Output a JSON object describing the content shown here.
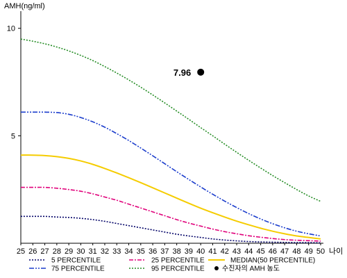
{
  "chart_data": {
    "type": "line",
    "ylabel": "AMH(ng/ml)",
    "xlabel": "나이",
    "x": [
      25,
      26,
      27,
      28,
      29,
      30,
      31,
      32,
      33,
      34,
      35,
      36,
      37,
      38,
      39,
      40,
      41,
      42,
      43,
      44,
      45,
      46,
      47,
      48,
      49,
      50
    ],
    "xlim": [
      25,
      50
    ],
    "ylim": [
      0,
      10.8
    ],
    "yticks": [
      5,
      10
    ],
    "series": [
      {
        "name": "5 PERCENTILE",
        "color": "#000066",
        "dash": "2,2",
        "values": [
          1.25,
          1.25,
          1.25,
          1.22,
          1.2,
          1.16,
          1.1,
          1.02,
          0.92,
          0.82,
          0.72,
          0.62,
          0.52,
          0.42,
          0.34,
          0.27,
          0.2,
          0.15,
          0.11,
          0.08,
          0.06,
          0.05,
          0.04,
          0.03,
          0.03,
          0.02
        ]
      },
      {
        "name": "25 PERCENTILE",
        "color": "#e0007a",
        "dash": "6,2,2,2",
        "values": [
          2.6,
          2.6,
          2.6,
          2.56,
          2.5,
          2.42,
          2.3,
          2.15,
          2.0,
          1.82,
          1.64,
          1.46,
          1.28,
          1.1,
          0.94,
          0.8,
          0.66,
          0.54,
          0.44,
          0.35,
          0.28,
          0.22,
          0.17,
          0.14,
          0.12,
          0.1
        ]
      },
      {
        "name": "MEDIAN(50 PERCENTILE)",
        "color": "#f5cc00",
        "dash": "",
        "values": [
          4.1,
          4.1,
          4.08,
          4.03,
          3.95,
          3.83,
          3.67,
          3.48,
          3.27,
          3.05,
          2.82,
          2.58,
          2.34,
          2.1,
          1.86,
          1.63,
          1.42,
          1.22,
          1.03,
          0.86,
          0.7,
          0.56,
          0.44,
          0.34,
          0.27,
          0.2
        ]
      },
      {
        "name": "75 PERCENTILE",
        "color": "#1a3ccc",
        "dash": "7,2,2,2,2,2",
        "values": [
          6.1,
          6.1,
          6.1,
          6.08,
          6.0,
          5.85,
          5.65,
          5.4,
          5.1,
          4.78,
          4.43,
          4.07,
          3.7,
          3.33,
          2.97,
          2.62,
          2.28,
          1.96,
          1.66,
          1.38,
          1.13,
          0.91,
          0.72,
          0.56,
          0.44,
          0.34
        ]
      },
      {
        "name": "95 PERCENTILE",
        "color": "#228b22",
        "dash": "2,2",
        "values": [
          9.5,
          9.4,
          9.28,
          9.13,
          8.95,
          8.74,
          8.5,
          8.22,
          7.92,
          7.6,
          7.26,
          6.9,
          6.53,
          6.15,
          5.77,
          5.38,
          5.0,
          4.61,
          4.23,
          3.86,
          3.5,
          3.15,
          2.82,
          2.5,
          2.2,
          1.95
        ]
      }
    ],
    "annotation": {
      "label": "7.96",
      "x": 40,
      "y": 7.96,
      "legend": "수진자의 AMH 농도"
    }
  }
}
